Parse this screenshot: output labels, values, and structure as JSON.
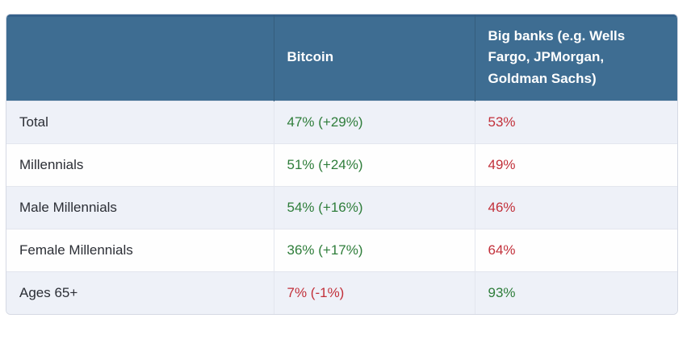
{
  "chart_data": {
    "type": "table",
    "columns": [
      "",
      "Bitcoin",
      "Big banks (e.g. Wells Fargo, JPMorgan, Goldman Sachs)"
    ],
    "rows": [
      {
        "category": "Total",
        "bitcoin_display": "47% (+29%)",
        "bitcoin_pct": 47,
        "bitcoin_change_pct": 29,
        "bitcoin_tone": "green",
        "banks_display": "53%",
        "banks_pct": 53,
        "banks_tone": "red"
      },
      {
        "category": "Millennials",
        "bitcoin_display": "51% (+24%)",
        "bitcoin_pct": 51,
        "bitcoin_change_pct": 24,
        "bitcoin_tone": "green",
        "banks_display": "49%",
        "banks_pct": 49,
        "banks_tone": "red"
      },
      {
        "category": "Male Millennials",
        "bitcoin_display": "54% (+16%)",
        "bitcoin_pct": 54,
        "bitcoin_change_pct": 16,
        "bitcoin_tone": "green",
        "banks_display": "46%",
        "banks_pct": 46,
        "banks_tone": "red"
      },
      {
        "category": "Female Millennials",
        "bitcoin_display": "36% (+17%)",
        "bitcoin_pct": 36,
        "bitcoin_change_pct": 17,
        "bitcoin_tone": "green",
        "banks_display": "64%",
        "banks_pct": 64,
        "banks_tone": "red"
      },
      {
        "category": "Ages 65+",
        "bitcoin_display": "7% (-1%)",
        "bitcoin_pct": 7,
        "bitcoin_change_pct": -1,
        "bitcoin_tone": "red",
        "banks_display": "93%",
        "banks_pct": 93,
        "banks_tone": "green"
      }
    ],
    "legend_position": "none",
    "grid": true
  },
  "colors": {
    "header_bg": "#3e6d92",
    "header_top_edge": "#35618a",
    "header_text": "#ffffff",
    "row_alt_bg": "#eef1f8",
    "row_bg": "#fefefe",
    "border": "#e3e6ee",
    "outer_border": "#d5d9e4",
    "label_text": "#2b2e35",
    "positive_green": "#2e7d3a",
    "negative_red": "#c2303a"
  }
}
